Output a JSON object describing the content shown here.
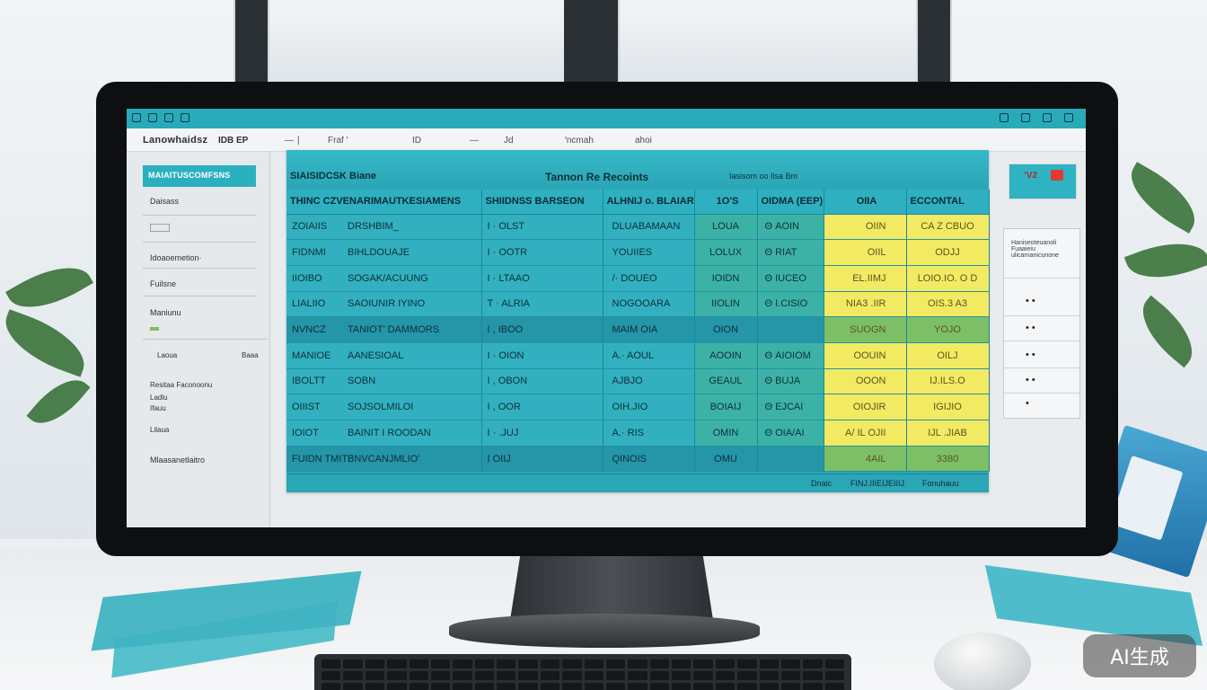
{
  "screen": {
    "menubar": {
      "brand": "Lanowhaidsz",
      "brand_suffix": "IDB EP",
      "items": [
        "― ∣",
        "Fraf ′",
        "ID",
        "―",
        "Jd",
        "′ncmah",
        "ahoi"
      ]
    },
    "sidebar": {
      "active_item": "MAIAITUSCOMFSNS",
      "items": [
        "Daisass",
        "Idoaoemetion·",
        "Fuilsne",
        "Maniunu",
        "Laoua",
        "Baaa",
        "Resitaa Faconoonu",
        "Ladlu",
        "Ifauu",
        "Lilaua",
        "Mlaasanetlaitro"
      ]
    },
    "table": {
      "subtitle": "SIAISIDCSK Biane",
      "title": "Tannon Re Recoints",
      "right_note": "Iasisom oo Ilsa Bm",
      "columns": [
        "THINC CZVENARIMAUTKESIAMENS",
        "SHIIDNSS BARSEON",
        "ALHNIJ o. BLAIARAN",
        "1O'S",
        "OIDMA (EEP)",
        "OIIA",
        "ECCONTAL"
      ],
      "rows": [
        [
          "ZOIAIIS",
          "DRSHBIM_",
          "I    · OLST",
          "DLUABAMAAN",
          "LOUA",
          "Θ   AOIN",
          "OIIN",
          "CA Z   CBUO"
        ],
        [
          "FIDNMI",
          "BIHLDOUAJE",
          "I    · OOTR",
          "YOUIIES",
          "LOLUX",
          "Θ   RIAT",
          "OIIL",
          "ODJJ"
        ],
        [
          "IIOIBO",
          "SOGAK/ACUUNG",
          "I    · LTAAO",
          "/· DOUEO",
          "IOIDN",
          "Θ   IUCEO",
          "EL.IIMJ",
          "LOIO.IO. O D"
        ],
        [
          "LIALIIO",
          "SAOIUNIR IYINO",
          "T  · ALRIA",
          "NOGOOARA",
          "IIOLIN",
          "Θ   I.CISIO",
          "NIA3 .IIR",
          "OIS.3 A3"
        ],
        [
          "NVNCZ",
          "TANIOT’ DAMMORS",
          "I , IBOO",
          "MAIM OIA",
          "OION",
          "",
          "SUOGN",
          "YOJO"
        ],
        [
          "MANIOE",
          "AANESIOAL",
          "I    · OION",
          "A.· AOUL",
          "AOOIN",
          "Θ   AIOIOM",
          "OOUIN",
          "OILJ"
        ],
        [
          "IBOLTT",
          "SOBN",
          "I , OBON",
          "AJBJO",
          "GEAUL",
          "Θ   BUJA",
          "OOON",
          "IJ.ILS.O"
        ],
        [
          "OIIIST",
          "SOJSOLMILOI",
          "I , OOR",
          "OIH.JIO",
          "BOIAIJ",
          "Θ   EJCAI",
          "OIOJIR",
          "IGIJIO"
        ],
        [
          "IOIOT",
          "BAINIT I ROODAN",
          "I    · .JUJ",
          "A.· RIS",
          "OMIN",
          "Θ   OIA/AI",
          "A/ IL OJII",
          "IJL .JIAB"
        ],
        [
          "FUIDN TMIT",
          "BNVCANJMLIO’",
          "I    OIIJ",
          "QINOIS",
          "OMU",
          "",
          "4AIL",
          "3380"
        ]
      ],
      "footer": [
        "Dnaic",
        "FINJ.IIIEIJEIIIJ",
        "Fonuhauu"
      ]
    },
    "badge_text": "’V2",
    "right_panel": {
      "title": "Haniseoteuanoli Fuaaieiu ulicarnanicunone",
      "marks": [
        "•  •",
        "•  •",
        "•  •",
        "•  •",
        "•"
      ]
    }
  },
  "watermark": "AI生成",
  "colors": {
    "titlebar": "#29aab9",
    "table_bg": "#32b0bf",
    "highlight_yellow": "#f3ea63",
    "highlight_green": "#7dbf66"
  }
}
